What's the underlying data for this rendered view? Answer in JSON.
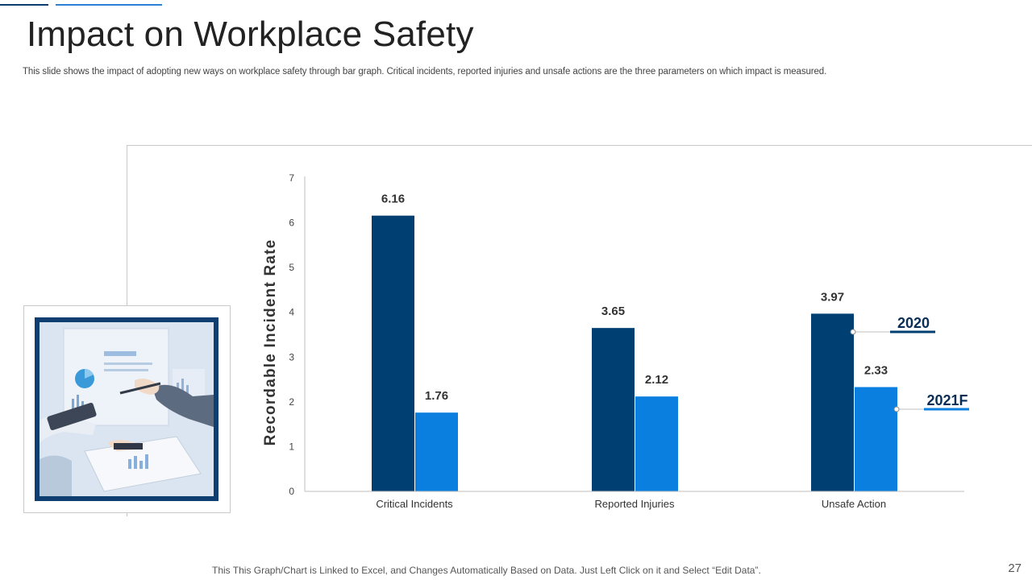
{
  "slide": {
    "title": "Impact on Workplace Safety",
    "subtitle": "This slide shows the impact of adopting new ways on workplace safety through bar graph. Critical incidents, reported injuries and unsafe actions are the three parameters on which impact is measured.",
    "footer": "This This Graph/Chart is Linked to Excel, and Changes Automatically Based on Data. Just Left Click on it and Select “Edit Data”.",
    "page_number": "27"
  },
  "colors": {
    "accent_dark": "#0a3d6e",
    "accent_blue": "#2b7fd4",
    "series_2020": "#003f72",
    "series_2021F": "#0a7fe0"
  },
  "chart_data": {
    "type": "bar",
    "title": "",
    "xlabel": "",
    "ylabel": "Recordable Incident Rate",
    "ylim": [
      0,
      7
    ],
    "yticks": [
      0,
      1,
      2,
      3,
      4,
      5,
      6,
      7
    ],
    "categories": [
      "Critical Incidents",
      "Reported Injuries",
      "Unsafe Action"
    ],
    "series": [
      {
        "name": "2020",
        "values": [
          6.16,
          3.65,
          3.97
        ]
      },
      {
        "name": "2021F",
        "values": [
          1.76,
          2.12,
          2.33
        ]
      }
    ],
    "legend_placement": "right",
    "grid": false
  }
}
